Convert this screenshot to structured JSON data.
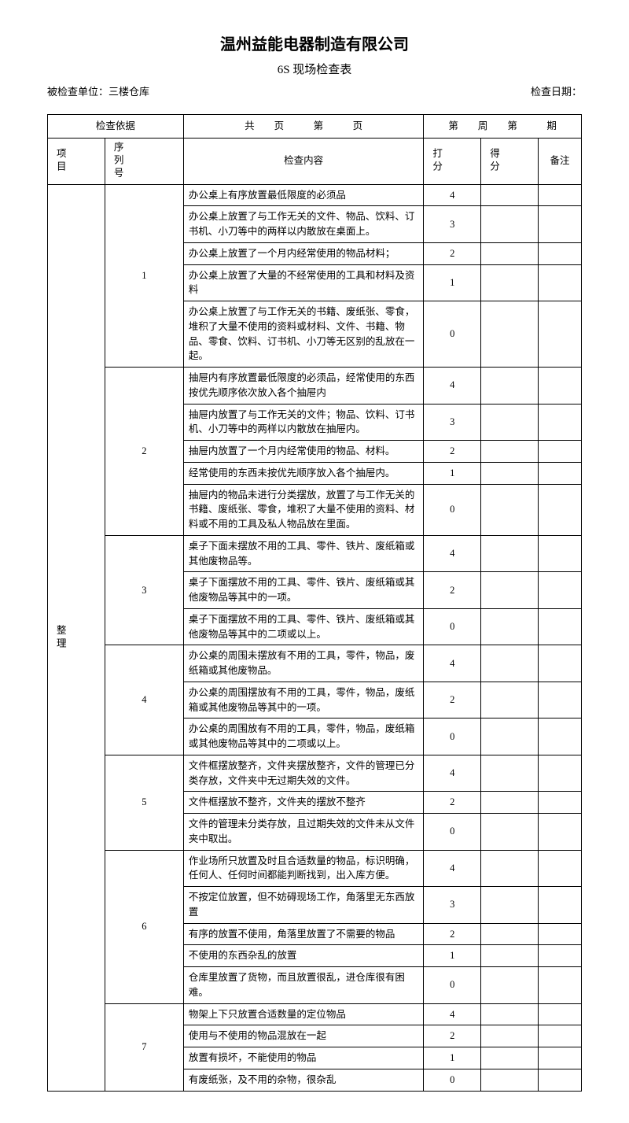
{
  "header": {
    "company": "温州益能电器制造有限公司",
    "form_title": "6S 现场检查表",
    "inspected_unit_label": "被检查单位：",
    "inspected_unit": "三楼仓库",
    "date_label": "检查日期："
  },
  "top_bar": {
    "basis": "检查依据",
    "pages": "共　　页　　　第　　　页",
    "period": "第　　周　　第　　　期"
  },
  "col_headers": {
    "project": "项目",
    "seq": "序列号",
    "content": "检查内容",
    "score": "打分",
    "got": "得分",
    "remark": "备注"
  },
  "category": "整理",
  "groups": [
    {
      "seq": "1",
      "rows": [
        {
          "text": "办公桌上有序放置最低限度的必须品",
          "score": "4"
        },
        {
          "text": "办公桌上放置了与工作无关的文件、物品、饮料、订书机、小刀等中的两样以内散放在桌面上。",
          "score": "3"
        },
        {
          "text": "办公桌上放置了一个月内经常使用的物品材料；",
          "score": "2"
        },
        {
          "text": "办公桌上放置了大量的不经常使用的工具和材料及资料",
          "score": "1"
        },
        {
          "text": "办公桌上放置了与工作无关的书籍、废纸张、零食，堆积了大量不使用的资料或材料、文件、书籍、物品、零食、饮料、订书机、小刀等无区别的乱放在一起。",
          "score": "0"
        }
      ]
    },
    {
      "seq": "2",
      "rows": [
        {
          "text": "抽屉内有序放置最低限度的必须品，经常使用的东西按优先顺序依次放入各个抽屉内",
          "score": "4"
        },
        {
          "text": "抽屉内放置了与工作无关的文件；物品、饮料、订书机、小刀等中的两样以内散放在抽屉内。",
          "score": "3"
        },
        {
          "text": "抽屉内放置了一个月内经常使用的物品、材料。",
          "score": "2"
        },
        {
          "text": "经常使用的东西未按优先顺序放入各个抽屉内。",
          "score": "1"
        },
        {
          "text": "抽屉内的物品未进行分类摆放，放置了与工作无关的书籍、废纸张、零食，堆积了大量不使用的资料、材料或不用的工具及私人物品放在里面。",
          "score": "0"
        }
      ]
    },
    {
      "seq": "3",
      "rows": [
        {
          "text": "桌子下面未摆放不用的工具、零件、铁片、废纸箱或其他废物品等。",
          "score": "4"
        },
        {
          "text": "桌子下面摆放不用的工具、零件、铁片、废纸箱或其他废物品等其中的一项。",
          "score": "2"
        },
        {
          "text": "桌子下面摆放不用的工具、零件、铁片、废纸箱或其他废物品等其中的二项或以上。",
          "score": "0"
        }
      ]
    },
    {
      "seq": "4",
      "rows": [
        {
          "text": "办公桌的周围未摆放有不用的工具，零件，物品，废纸箱或其他废物品。",
          "score": "4"
        },
        {
          "text": "办公桌的周围摆放有不用的工具，零件，物品，废纸箱或其他废物品等其中的一项。",
          "score": "2"
        },
        {
          "text": "办公桌的周围放有不用的工具，零件，物品，废纸箱或其他废物品等其中的二项或以上。",
          "score": "0"
        }
      ]
    },
    {
      "seq": "5",
      "rows": [
        {
          "text": "文件框摆放整齐，文件夹摆放整齐，文件的管理已分类存放，文件夹中无过期失效的文件。",
          "score": "4"
        },
        {
          "text": "文件框摆放不整齐，文件夹的摆放不整齐",
          "score": "2"
        },
        {
          "text": "文件的管理未分类存放，且过期失效的文件未从文件夹中取出。",
          "score": "0"
        }
      ]
    },
    {
      "seq": "6",
      "rows": [
        {
          "text": "作业场所只放置及时且合适数量的物品，标识明确，任何人、任何时间都能判断找到，出入库方便。",
          "score": "4"
        },
        {
          "text": "不按定位放置，但不妨碍现场工作，角落里无东西放置",
          "score": "3"
        },
        {
          "text": "有序的放置不使用，角落里放置了不需要的物品",
          "score": "2"
        },
        {
          "text": "不使用的东西杂乱的放置",
          "score": "1"
        },
        {
          "text": "仓库里放置了货物，而且放置很乱，进仓库很有困难。",
          "score": "0"
        }
      ]
    },
    {
      "seq": "7",
      "rows": [
        {
          "text": "物架上下只放置合适数量的定位物品",
          "score": "4"
        },
        {
          "text": "使用与不使用的物品混放在一起",
          "score": "2"
        },
        {
          "text": "放置有损坏，不能使用的物品",
          "score": "1"
        },
        {
          "text": "有废纸张，及不用的杂物，很杂乱",
          "score": "0"
        }
      ]
    }
  ],
  "style": {
    "background": "#ffffff",
    "text_color": "#000000",
    "border_color": "#000000",
    "title_fontsize": 20,
    "subtitle_fontsize": 15,
    "body_fontsize": 13
  }
}
